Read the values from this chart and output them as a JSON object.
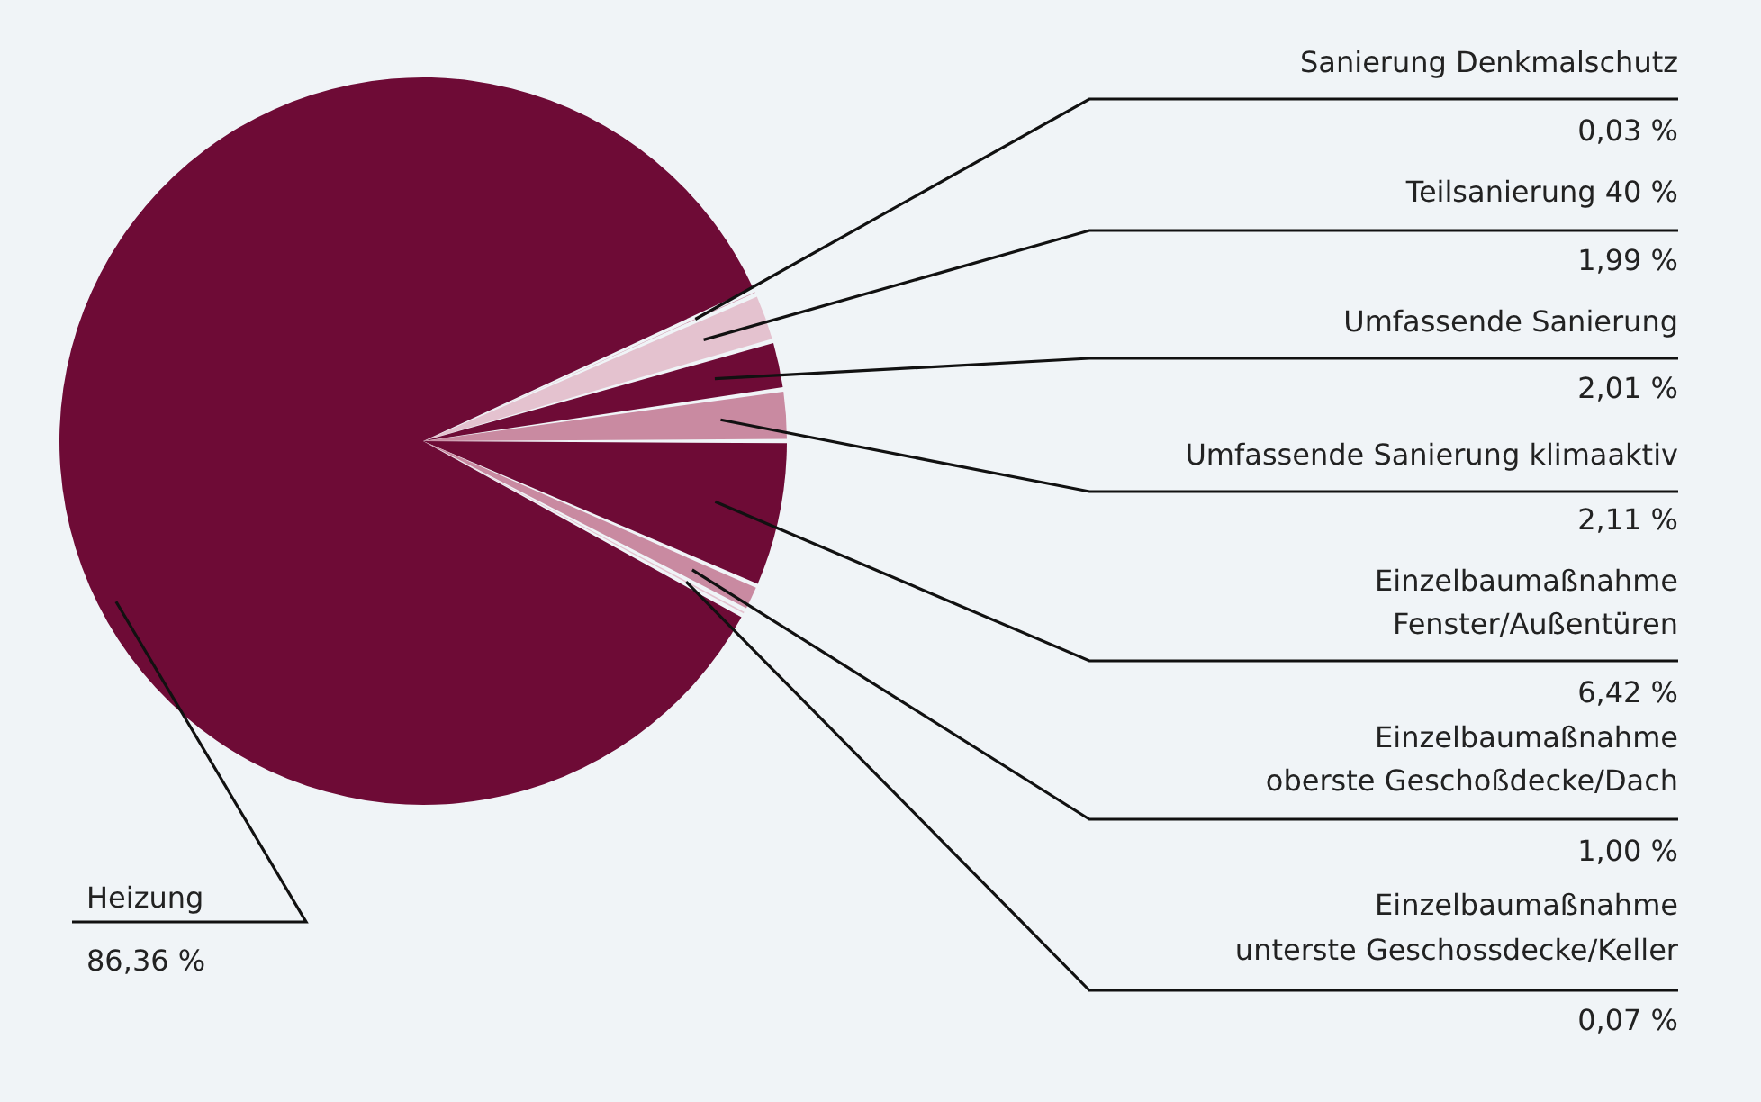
{
  "chart_data": {
    "type": "pie",
    "categories": [
      "Sanierung Denkmalschutz",
      "Teilsanierung 40 %",
      "Umfassende Sanierung",
      "Umfassende Sanierung klimaaktiv",
      "Einzelbaumaßnahme Fenster/Außentüren",
      "Einzelbaumaßnahme oberste Geschoßdecke/Dach",
      "Einzelbaumaßnahme unterste Geschossdecke/Keller",
      "Heizung"
    ],
    "values": [
      0.03,
      1.99,
      2.01,
      2.11,
      6.42,
      1.0,
      0.07,
      86.36
    ],
    "value_labels": [
      "0,03 %",
      "1,99 %",
      "2,01 %",
      "2,11 %",
      "6,42 %",
      "1,00 %",
      "0,07 %",
      "86,36 %"
    ],
    "colors": [
      "#c98aa1",
      "#e4c2cf",
      "#6e0b36",
      "#c98aa1",
      "#6e0b36",
      "#c98aa1",
      "#e4c2cf",
      "#6e0b36"
    ],
    "legend": false
  }
}
